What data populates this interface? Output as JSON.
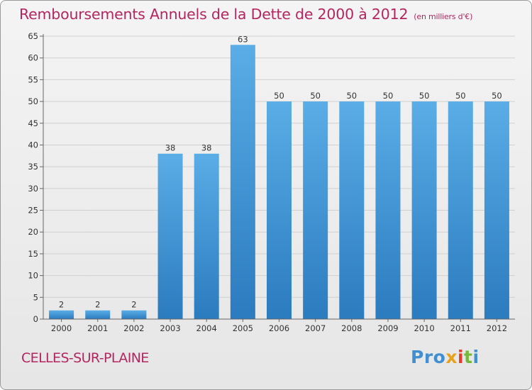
{
  "chart_data": {
    "type": "bar",
    "title": "Remboursements Annuels de la Dette de 2000 à 2012",
    "unit_label": "(en milliers d'€)",
    "categories": [
      "2000",
      "2001",
      "2002",
      "2003",
      "2004",
      "2005",
      "2006",
      "2007",
      "2008",
      "2009",
      "2010",
      "2011",
      "2012"
    ],
    "values": [
      2,
      2,
      2,
      38,
      38,
      63,
      50,
      50,
      50,
      50,
      50,
      50,
      50
    ],
    "ylim": [
      0,
      65
    ],
    "yticks": [
      0,
      5,
      10,
      15,
      20,
      25,
      30,
      35,
      40,
      45,
      50,
      55,
      60,
      65
    ],
    "grid": true,
    "bar_color_top": "#5aade6",
    "bar_color_bottom": "#2b7bbf"
  },
  "footer": {
    "city": "CELLES-SUR-PLAINE",
    "logo_parts": [
      "Pro",
      "x",
      "i",
      "t",
      "i"
    ]
  },
  "colors": {
    "title": "#b3265f",
    "background": "#eeeeee",
    "grid": "#d0d0d0"
  }
}
